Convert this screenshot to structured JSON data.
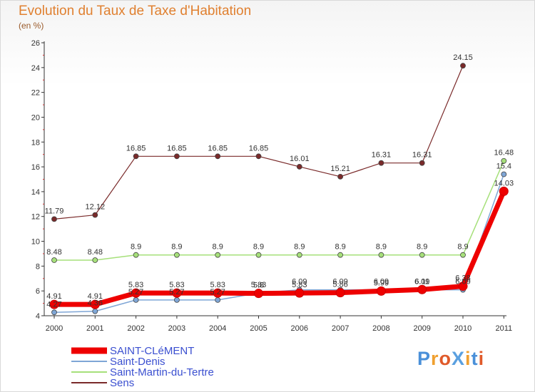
{
  "header": {
    "title": "Evolution du Taux de Taxe d'Habitation",
    "unit": "(en %)"
  },
  "logo": {
    "text": "ProXiti",
    "letters": [
      "P",
      "r",
      "o",
      "X",
      "i",
      "t",
      "i"
    ],
    "colors": [
      "#4a90d9",
      "#f0a030",
      "#e05a2a",
      "#5aa0e0",
      "#f0a030",
      "#4a90d9",
      "#e05a2a"
    ]
  },
  "chart_data": {
    "type": "line",
    "title": "Evolution du Taux de Taxe d'Habitation",
    "ylabel": "(en %)",
    "xlabel": "",
    "ylim": [
      4,
      26
    ],
    "yticks": [
      4,
      6,
      8,
      10,
      12,
      14,
      16,
      18,
      20,
      22,
      24,
      26
    ],
    "grid": false,
    "legend_position": "bottom-left",
    "x": [
      "2000",
      "2001",
      "2002",
      "2003",
      "2004",
      "2005",
      "2006",
      "2007",
      "2008",
      "2009",
      "2010",
      "2011"
    ],
    "series": [
      {
        "name": "SAINT-CLéMENT",
        "color": "#ee0000",
        "width": 7,
        "marker": 6,
        "values": [
          4.91,
          4.91,
          5.83,
          5.83,
          5.83,
          5.8,
          5.83,
          5.86,
          5.99,
          6.11,
          6.38,
          14.03
        ],
        "labels": [
          "4.91",
          "4.91",
          "5.83",
          "5.83",
          "5.83",
          "5.8",
          "5.83",
          "5.86",
          "5.99",
          "6.11",
          "6.38",
          "14.03"
        ]
      },
      {
        "name": "Saint-Denis",
        "color": "#7fa6d6",
        "width": 1.5,
        "marker": 3.5,
        "values": [
          4.27,
          4.36,
          5.27,
          5.27,
          5.27,
          5.83,
          6.09,
          6.09,
          6.09,
          6.09,
          6.09,
          15.4
        ],
        "labels": [
          "4.27",
          "4.36",
          "5.27",
          "5.27",
          "5.27",
          "5.83",
          "6.09",
          "6.09",
          "6.09",
          "6.09",
          "6.09",
          "15.4"
        ]
      },
      {
        "name": "Saint-Martin-du-Tertre",
        "color": "#a6e07a",
        "width": 1.5,
        "marker": 3.5,
        "values": [
          8.48,
          8.48,
          8.9,
          8.9,
          8.9,
          8.9,
          8.9,
          8.9,
          8.9,
          8.9,
          8.9,
          16.48
        ],
        "labels": [
          "8.48",
          "8.48",
          "8.9",
          "8.9",
          "8.9",
          "8.9",
          "8.9",
          "8.9",
          "8.9",
          "8.9",
          "8.9",
          "16.48"
        ]
      },
      {
        "name": "Sens",
        "color": "#7a2a2a",
        "width": 1.2,
        "marker": 3.5,
        "values": [
          11.79,
          12.12,
          16.85,
          16.85,
          16.85,
          16.85,
          16.01,
          15.21,
          16.31,
          16.31,
          24.15,
          null
        ],
        "labels": [
          "11.79",
          "12.12",
          "16.85",
          "16.85",
          "16.85",
          "16.85",
          "16.01",
          "15.21",
          "16.31",
          "16.31",
          "24.15",
          ""
        ]
      }
    ]
  }
}
